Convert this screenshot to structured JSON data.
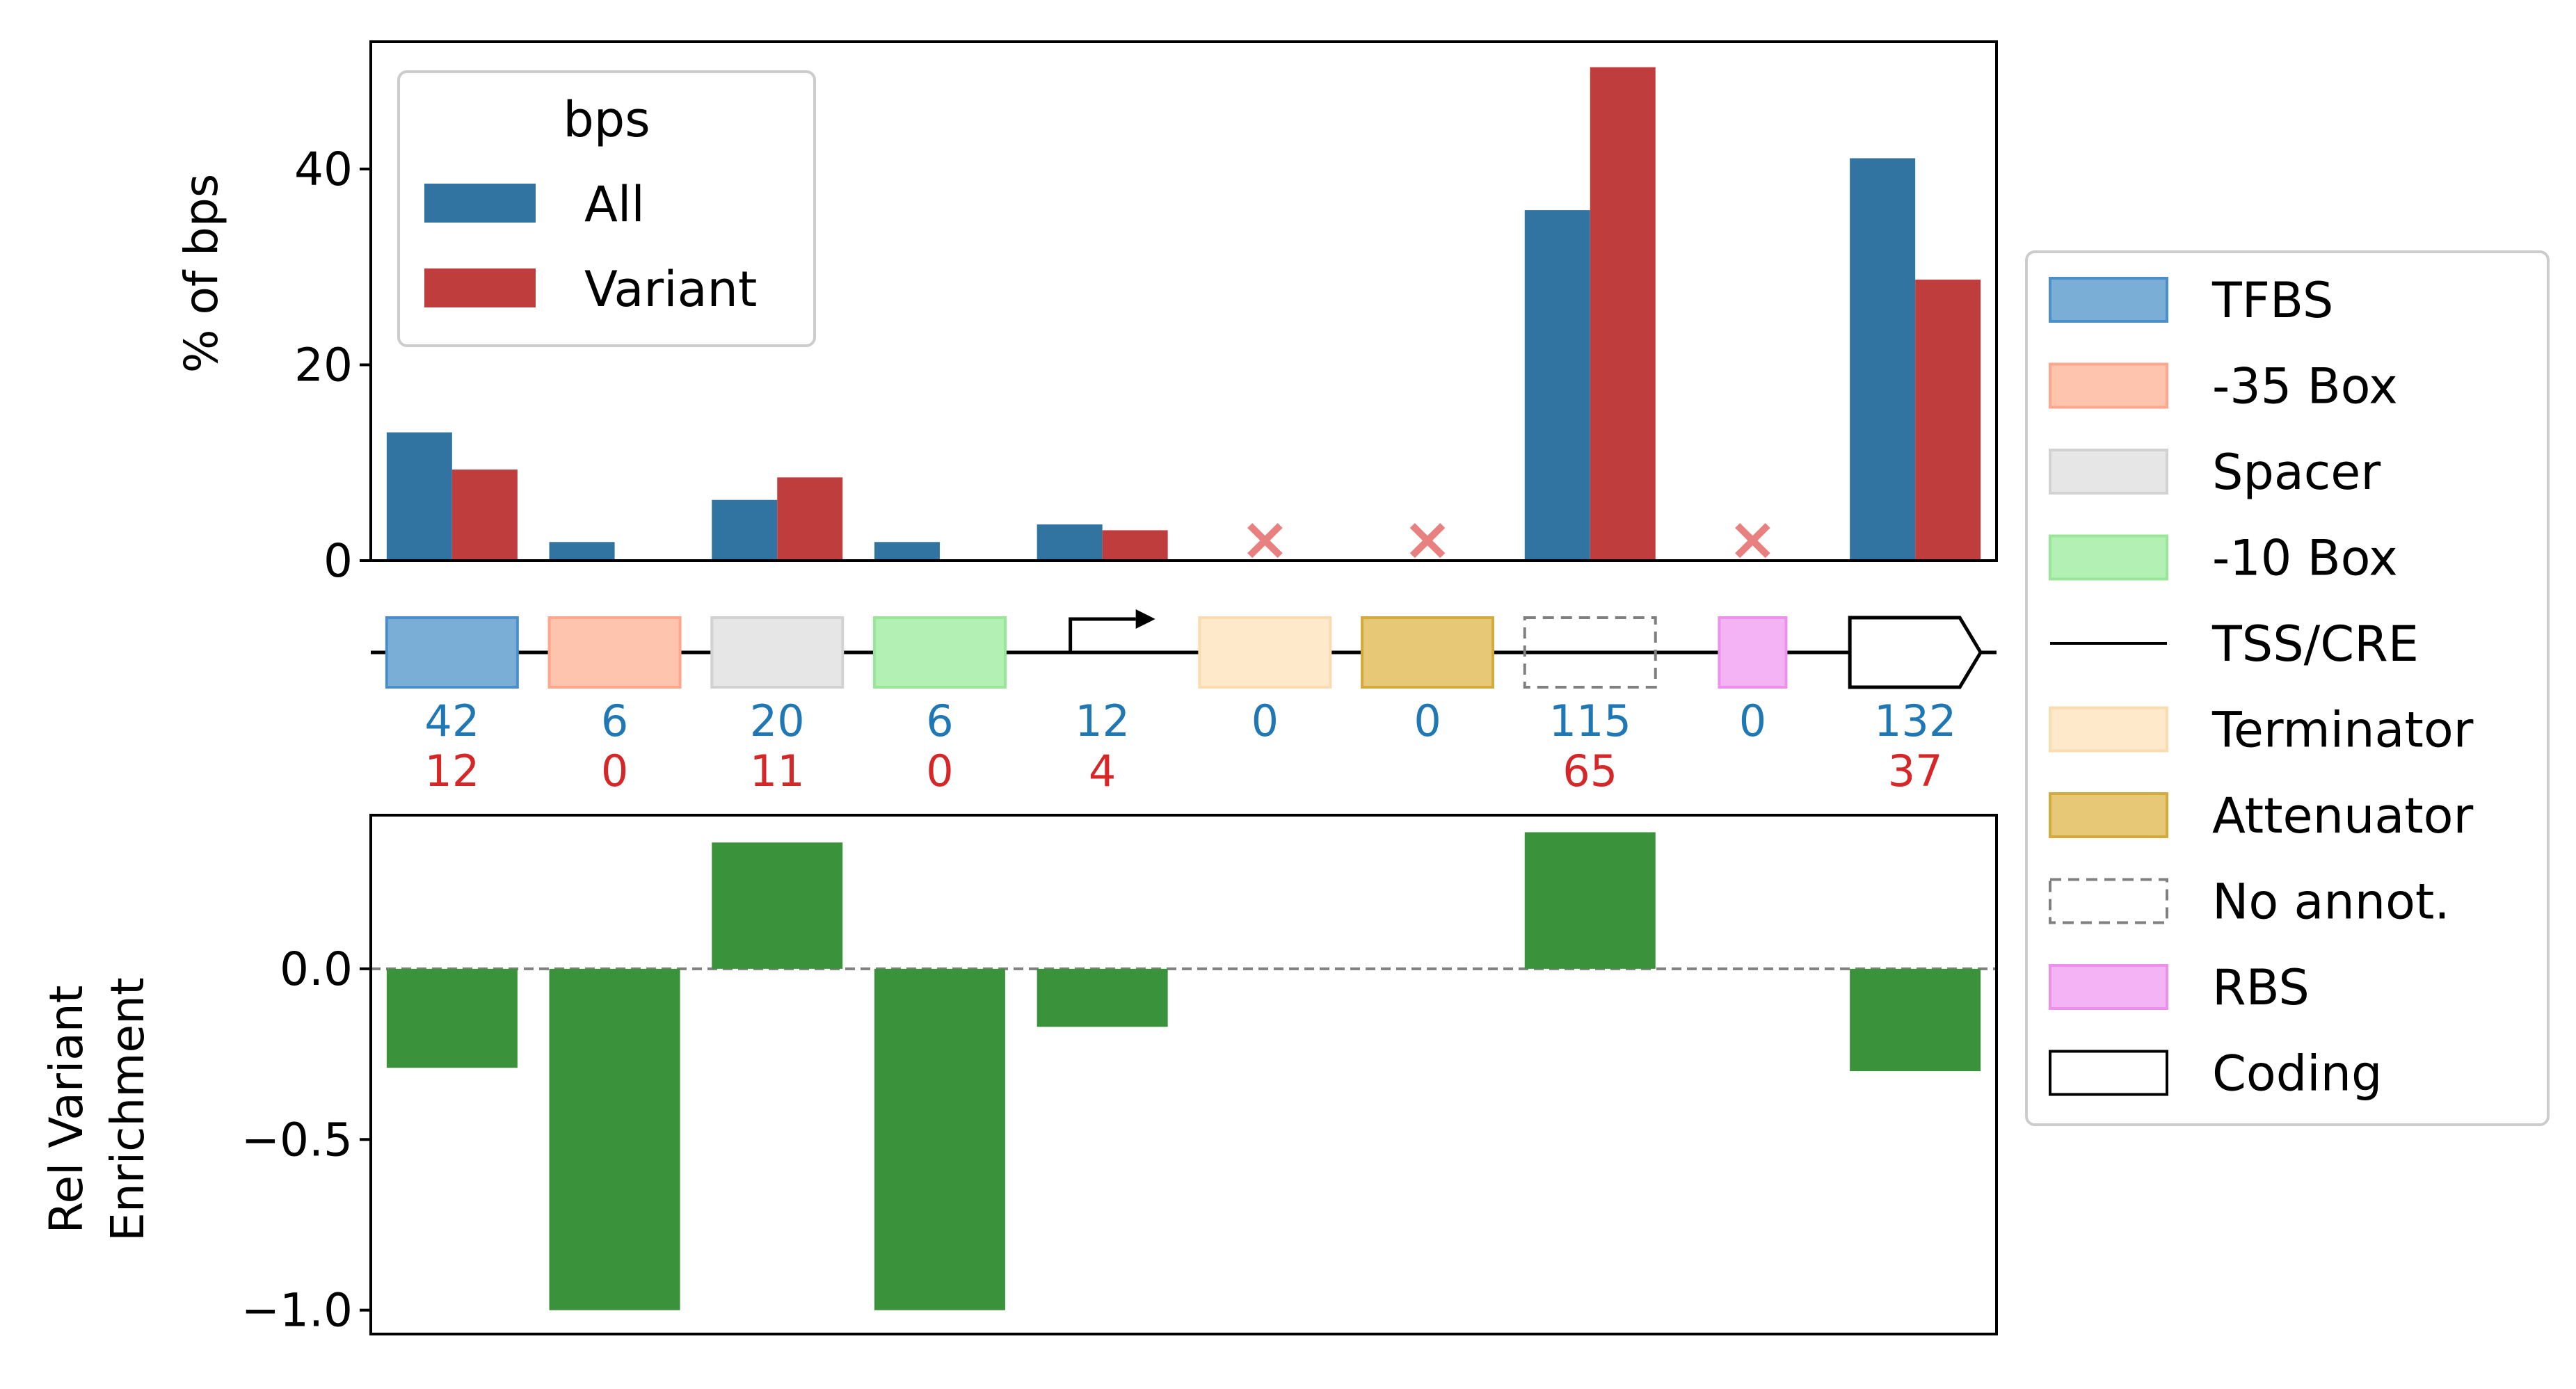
{
  "chart_data": [
    {
      "type": "bar",
      "panel": "top",
      "ylabel": "% of bps",
      "ylim": [
        0,
        53
      ],
      "yticks": [
        "0",
        "20",
        "40"
      ],
      "ytick_values": [
        0,
        20,
        40
      ],
      "legend": {
        "title": "bps",
        "placement": "top-left"
      },
      "categories": [
        "TFBS",
        "-35 Box",
        "Spacer",
        "-10 Box",
        "TSS/CRE",
        "Terminator",
        "Attenuator",
        "No annot.",
        "RBS",
        "Coding"
      ],
      "series": [
        {
          "name": "All",
          "color": "#3274a1",
          "values": [
            13.1,
            1.9,
            6.2,
            1.9,
            3.7,
            0,
            0,
            35.8,
            0,
            41.1
          ]
        },
        {
          "name": "Variant",
          "color": "#c03d3e",
          "values": [
            9.3,
            0,
            8.5,
            0,
            3.1,
            0,
            0,
            50.4,
            0,
            28.7
          ]
        }
      ],
      "missing_markers": {
        "symbol": "×",
        "categories": [
          "Terminator",
          "Attenuator",
          "RBS"
        ],
        "color": "#e88080"
      }
    },
    {
      "type": "bar",
      "panel": "bottom",
      "ylabel_lines": [
        "Rel Variant",
        "Enrichment"
      ],
      "ylim": [
        -1.07,
        0.45
      ],
      "yticks": [
        "0.0",
        "−0.5",
        "−1.0"
      ],
      "ytick_values": [
        0,
        -0.5,
        -1.0
      ],
      "reference_line": 0,
      "categories": [
        "TFBS",
        "-35 Box",
        "Spacer",
        "-10 Box",
        "TSS/CRE",
        "Terminator",
        "Attenuator",
        "No annot.",
        "RBS",
        "Coding"
      ],
      "series": [
        {
          "color": "#3a923a",
          "values": [
            -0.29,
            -1.0,
            0.37,
            -1.0,
            -0.17,
            null,
            null,
            0.4,
            null,
            -0.3
          ]
        }
      ]
    }
  ],
  "track": {
    "counts_all": [
      "42",
      "6",
      "20",
      "6",
      "12",
      "0",
      "0",
      "115",
      "0",
      "132"
    ],
    "counts_variant": [
      "12",
      "0",
      "11",
      "0",
      "4",
      "",
      "",
      "65",
      "",
      "37"
    ],
    "all_color": "#1f77b4",
    "variant_color": "#d62728"
  },
  "feature_legend": {
    "items": [
      {
        "label": "TFBS",
        "style": "box",
        "fill": "#7baed6",
        "stroke": "#4a8fc9"
      },
      {
        "label": "-35 Box",
        "style": "box",
        "fill": "#ffc4ad",
        "stroke": "#ffa68c"
      },
      {
        "label": "Spacer",
        "style": "box",
        "fill": "#e6e6e6",
        "stroke": "#d2d2d2"
      },
      {
        "label": "-10 Box",
        "style": "box",
        "fill": "#b3f0b3",
        "stroke": "#98e698"
      },
      {
        "label": "TSS/CRE",
        "style": "line",
        "stroke": "#000000"
      },
      {
        "label": "Terminator",
        "style": "box",
        "fill": "#fee9cb",
        "stroke": "#fbdcb0"
      },
      {
        "label": "Attenuator",
        "style": "box",
        "fill": "#e6c877",
        "stroke": "#d4aa3c"
      },
      {
        "label": "No annot.",
        "style": "dashed",
        "fill": "#ffffff",
        "stroke": "#808080"
      },
      {
        "label": "RBS",
        "style": "box",
        "fill": "#f4b3f4",
        "stroke": "#ec90ec"
      },
      {
        "label": "Coding",
        "style": "outline",
        "fill": "#ffffff",
        "stroke": "#000000"
      }
    ]
  }
}
